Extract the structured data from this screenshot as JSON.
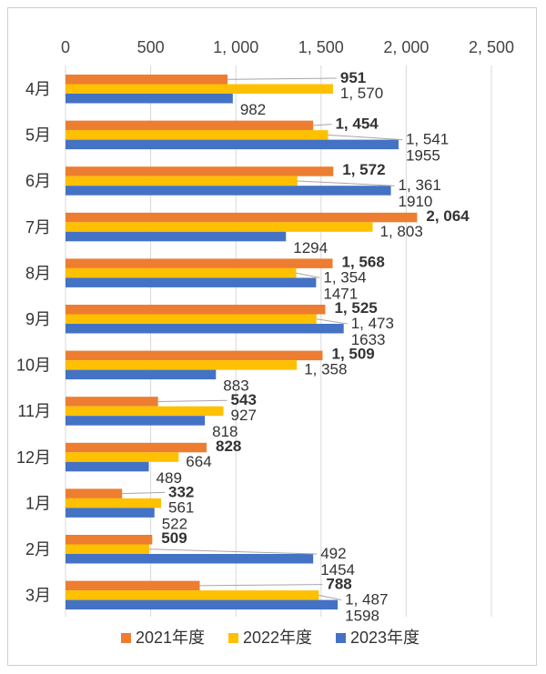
{
  "chart_data": {
    "type": "bar",
    "orientation": "horizontal",
    "xlim": [
      0,
      2500
    ],
    "x_ticks": [
      0,
      500,
      1000,
      1500,
      2000,
      2500
    ],
    "x_tick_labels": [
      "0",
      "500",
      "1, 000",
      "1, 500",
      "2, 000",
      "2, 500"
    ],
    "grid": "vertical",
    "legend_position": "bottom",
    "categories": [
      "4月",
      "5月",
      "6月",
      "7月",
      "8月",
      "9月",
      "10月",
      "11月",
      "12月",
      "1月",
      "2月",
      "3月"
    ],
    "series": [
      {
        "name": "2021年度",
        "color": "#ED7D31",
        "values": [
          951,
          1454,
          1572,
          2064,
          1568,
          1525,
          1509,
          543,
          828,
          332,
          509,
          788
        ],
        "labels": [
          "951",
          "1, 454",
          "1, 572",
          "2, 064",
          "1, 568",
          "1, 525",
          "1, 509",
          "543",
          "828",
          "332",
          "509",
          "788"
        ]
      },
      {
        "name": "2022年度",
        "color": "#FFC000",
        "values": [
          1570,
          1541,
          1361,
          1803,
          1354,
          1473,
          1358,
          927,
          664,
          561,
          492,
          1487
        ],
        "labels": [
          "1, 570",
          "1, 541",
          "1, 361",
          "1, 803",
          "1, 354",
          "1, 473",
          "1, 358",
          "927",
          "664",
          "561",
          "492",
          "1, 487"
        ]
      },
      {
        "name": "2023年度",
        "color": "#4472C4",
        "values": [
          982,
          1955,
          1910,
          1294,
          1471,
          1633,
          883,
          818,
          489,
          522,
          1454,
          1598
        ],
        "labels": [
          "982",
          "1955",
          "1910",
          "1294",
          "1471",
          "1633",
          "883",
          "818",
          "489",
          "522",
          "1454",
          "1598"
        ]
      }
    ]
  }
}
